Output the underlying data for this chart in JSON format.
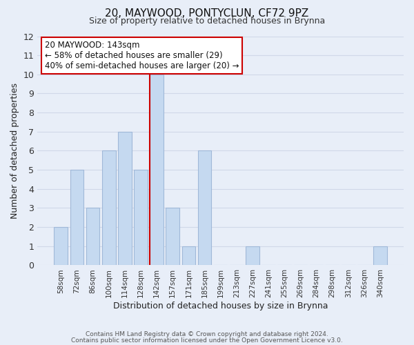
{
  "title": "20, MAYWOOD, PONTYCLUN, CF72 9PZ",
  "subtitle": "Size of property relative to detached houses in Brynna",
  "xlabel": "Distribution of detached houses by size in Brynna",
  "ylabel": "Number of detached properties",
  "footer_line1": "Contains HM Land Registry data © Crown copyright and database right 2024.",
  "footer_line2": "Contains public sector information licensed under the Open Government Licence v3.0.",
  "bar_labels": [
    "58sqm",
    "72sqm",
    "86sqm",
    "100sqm",
    "114sqm",
    "128sqm",
    "142sqm",
    "157sqm",
    "171sqm",
    "185sqm",
    "199sqm",
    "213sqm",
    "227sqm",
    "241sqm",
    "255sqm",
    "269sqm",
    "284sqm",
    "298sqm",
    "312sqm",
    "326sqm",
    "340sqm"
  ],
  "bar_values": [
    2,
    5,
    3,
    6,
    7,
    5,
    10,
    3,
    1,
    6,
    0,
    0,
    1,
    0,
    0,
    0,
    0,
    0,
    0,
    0,
    1
  ],
  "bar_color": "#c5d9f0",
  "bar_edge_color": "#a0b8d8",
  "highlight_index": 6,
  "highlight_line_color": "#cc0000",
  "ylim": [
    0,
    12
  ],
  "yticks": [
    0,
    1,
    2,
    3,
    4,
    5,
    6,
    7,
    8,
    9,
    10,
    11,
    12
  ],
  "annotation_title": "20 MAYWOOD: 143sqm",
  "annotation_line1": "← 58% of detached houses are smaller (29)",
  "annotation_line2": "40% of semi-detached houses are larger (20) →",
  "annotation_box_color": "#ffffff",
  "annotation_box_edge": "#cc0000",
  "grid_color": "#d0d8e8",
  "bg_color": "#e8eef8"
}
